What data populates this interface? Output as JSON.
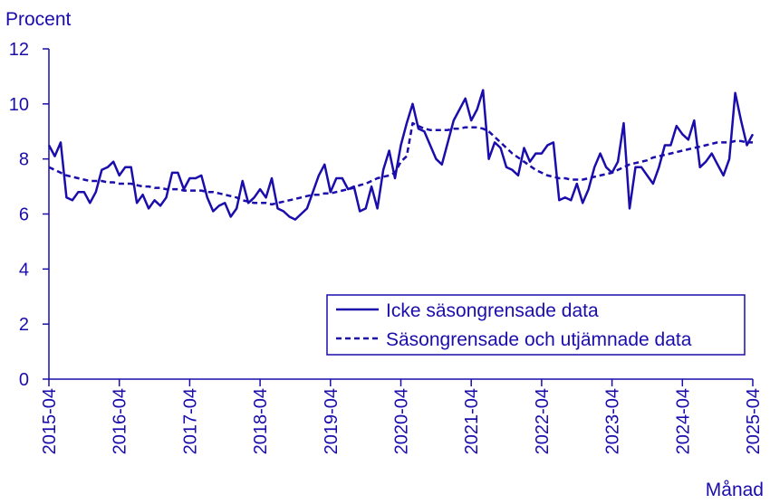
{
  "chart_data": {
    "type": "line",
    "title": "",
    "ylabel": "Procent",
    "xlabel": "Månad",
    "ylim": [
      0,
      12
    ],
    "yticks": [
      0,
      2,
      4,
      6,
      8,
      10,
      12
    ],
    "x_start": "2015-04",
    "x_end": "2025-04",
    "xticks": [
      "2015-04",
      "2016-04",
      "2017-04",
      "2018-04",
      "2019-04",
      "2020-04",
      "2021-04",
      "2022-04",
      "2023-04",
      "2024-04",
      "2025-04"
    ],
    "grid": false,
    "legend_position": "bottom-right",
    "colors": {
      "line": "#1a0dab",
      "axis": "#1a0dab"
    },
    "series": [
      {
        "name": "Icke säsongrensade data",
        "style": "solid",
        "values": [
          8.5,
          8.1,
          8.6,
          6.6,
          6.5,
          6.8,
          6.8,
          6.4,
          6.8,
          7.6,
          7.7,
          7.9,
          7.4,
          7.7,
          7.7,
          6.4,
          6.7,
          6.2,
          6.5,
          6.3,
          6.6,
          7.5,
          7.5,
          6.9,
          7.3,
          7.3,
          7.4,
          6.6,
          6.1,
          6.3,
          6.4,
          5.9,
          6.2,
          7.2,
          6.4,
          6.6,
          6.9,
          6.6,
          7.3,
          6.2,
          6.1,
          5.9,
          5.8,
          6.0,
          6.2,
          6.8,
          7.4,
          7.8,
          6.8,
          7.3,
          7.3,
          6.9,
          7.0,
          6.1,
          6.2,
          7.0,
          6.2,
          7.6,
          8.3,
          7.3,
          8.5,
          9.3,
          10.0,
          9.1,
          9.0,
          8.5,
          8.0,
          7.8,
          8.6,
          9.4,
          9.8,
          10.2,
          9.4,
          9.8,
          10.5,
          8.0,
          8.6,
          8.4,
          7.7,
          7.6,
          7.4,
          8.4,
          7.9,
          8.2,
          8.2,
          8.5,
          8.6,
          6.5,
          6.6,
          6.5,
          7.1,
          6.4,
          6.9,
          7.7,
          8.2,
          7.7,
          7.5,
          7.9,
          9.3,
          6.2,
          7.7,
          7.7,
          7.4,
          7.1,
          7.7,
          8.5,
          8.5,
          9.2,
          8.9,
          8.7,
          9.4,
          7.7,
          7.9,
          8.2,
          7.8,
          7.4,
          8.0,
          10.4,
          9.4,
          8.5,
          8.9
        ]
      },
      {
        "name": "Säsongrensade och utjämnade data",
        "style": "dashed",
        "values": [
          7.7,
          7.6,
          7.5,
          7.4,
          7.35,
          7.3,
          7.25,
          7.2,
          7.2,
          7.2,
          7.15,
          7.15,
          7.1,
          7.1,
          7.1,
          7.05,
          7.0,
          7.0,
          6.95,
          6.95,
          6.9,
          6.9,
          6.9,
          6.85,
          6.85,
          6.85,
          6.85,
          6.8,
          6.8,
          6.75,
          6.7,
          6.65,
          6.6,
          6.5,
          6.45,
          6.4,
          6.4,
          6.4,
          6.35,
          6.4,
          6.45,
          6.5,
          6.55,
          6.6,
          6.65,
          6.7,
          6.7,
          6.75,
          6.75,
          6.8,
          6.85,
          6.9,
          6.95,
          7.05,
          7.1,
          7.2,
          7.3,
          7.35,
          7.4,
          7.5,
          7.9,
          8.1,
          9.3,
          9.2,
          9.1,
          9.05,
          9.05,
          9.05,
          9.05,
          9.1,
          9.1,
          9.15,
          9.15,
          9.15,
          9.1,
          9.0,
          8.8,
          8.6,
          8.4,
          8.2,
          8.05,
          7.9,
          7.75,
          7.6,
          7.5,
          7.4,
          7.35,
          7.3,
          7.3,
          7.25,
          7.25,
          7.25,
          7.3,
          7.35,
          7.4,
          7.45,
          7.5,
          7.6,
          7.7,
          7.8,
          7.85,
          7.9,
          7.95,
          8.05,
          8.1,
          8.15,
          8.2,
          8.25,
          8.3,
          8.35,
          8.4,
          8.45,
          8.5,
          8.55,
          8.6,
          8.6,
          8.6,
          8.65,
          8.65,
          8.6,
          8.6
        ]
      }
    ]
  }
}
